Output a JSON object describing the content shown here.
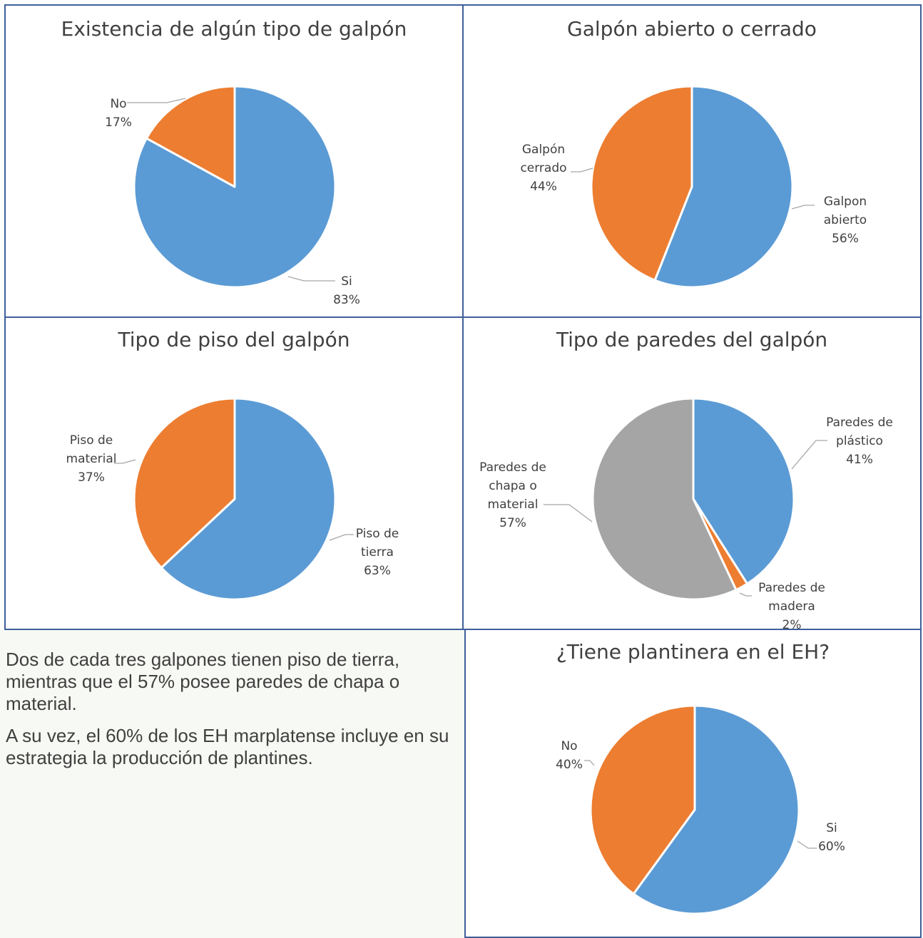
{
  "colors": {
    "blue": "#5b9bd5",
    "orange": "#ed7d31",
    "gray": "#a5a5a5",
    "border": "#3f5f9a",
    "text": "#404040"
  },
  "text_block": {
    "paragraph_1": "Dos de cada tres galpones tienen piso de tierra, mientras que el 57% posee paredes de chapa o material.",
    "paragraph_2": " A su vez, el 60% de los EH marplatense incluye en su estrategia la producción de plantines."
  },
  "chart_data": [
    {
      "type": "pie",
      "title": "Existencia de algún tipo de galpón",
      "slices": [
        {
          "label": "Si",
          "value": 83,
          "color": "#5b9bd5"
        },
        {
          "label": "No",
          "value": 17,
          "color": "#ed7d31"
        }
      ]
    },
    {
      "type": "pie",
      "title": "Galpón abierto o cerrado",
      "slices": [
        {
          "label": "Galpon abierto",
          "value": 56,
          "color": "#5b9bd5"
        },
        {
          "label": "Galpón cerrado",
          "value": 44,
          "color": "#ed7d31"
        }
      ]
    },
    {
      "type": "pie",
      "title": "Tipo de piso del galpón",
      "slices": [
        {
          "label": "Piso de tierra",
          "value": 63,
          "color": "#5b9bd5"
        },
        {
          "label": "Piso  de material",
          "value": 37,
          "color": "#ed7d31"
        }
      ]
    },
    {
      "type": "pie",
      "title": "Tipo de paredes del galpón",
      "slices": [
        {
          "label": "Paredes de plástico",
          "value": 41,
          "color": "#5b9bd5"
        },
        {
          "label": "Paredes de madera",
          "value": 2,
          "color": "#ed7d31"
        },
        {
          "label": "Paredes de chapa o material",
          "value": 57,
          "color": "#a5a5a5"
        }
      ]
    },
    {
      "type": "pie",
      "title": "¿Tiene plantinera en el EH?",
      "slices": [
        {
          "label": "Si",
          "value": 60,
          "color": "#5b9bd5"
        },
        {
          "label": "No",
          "value": 40,
          "color": "#ed7d31"
        }
      ]
    }
  ]
}
